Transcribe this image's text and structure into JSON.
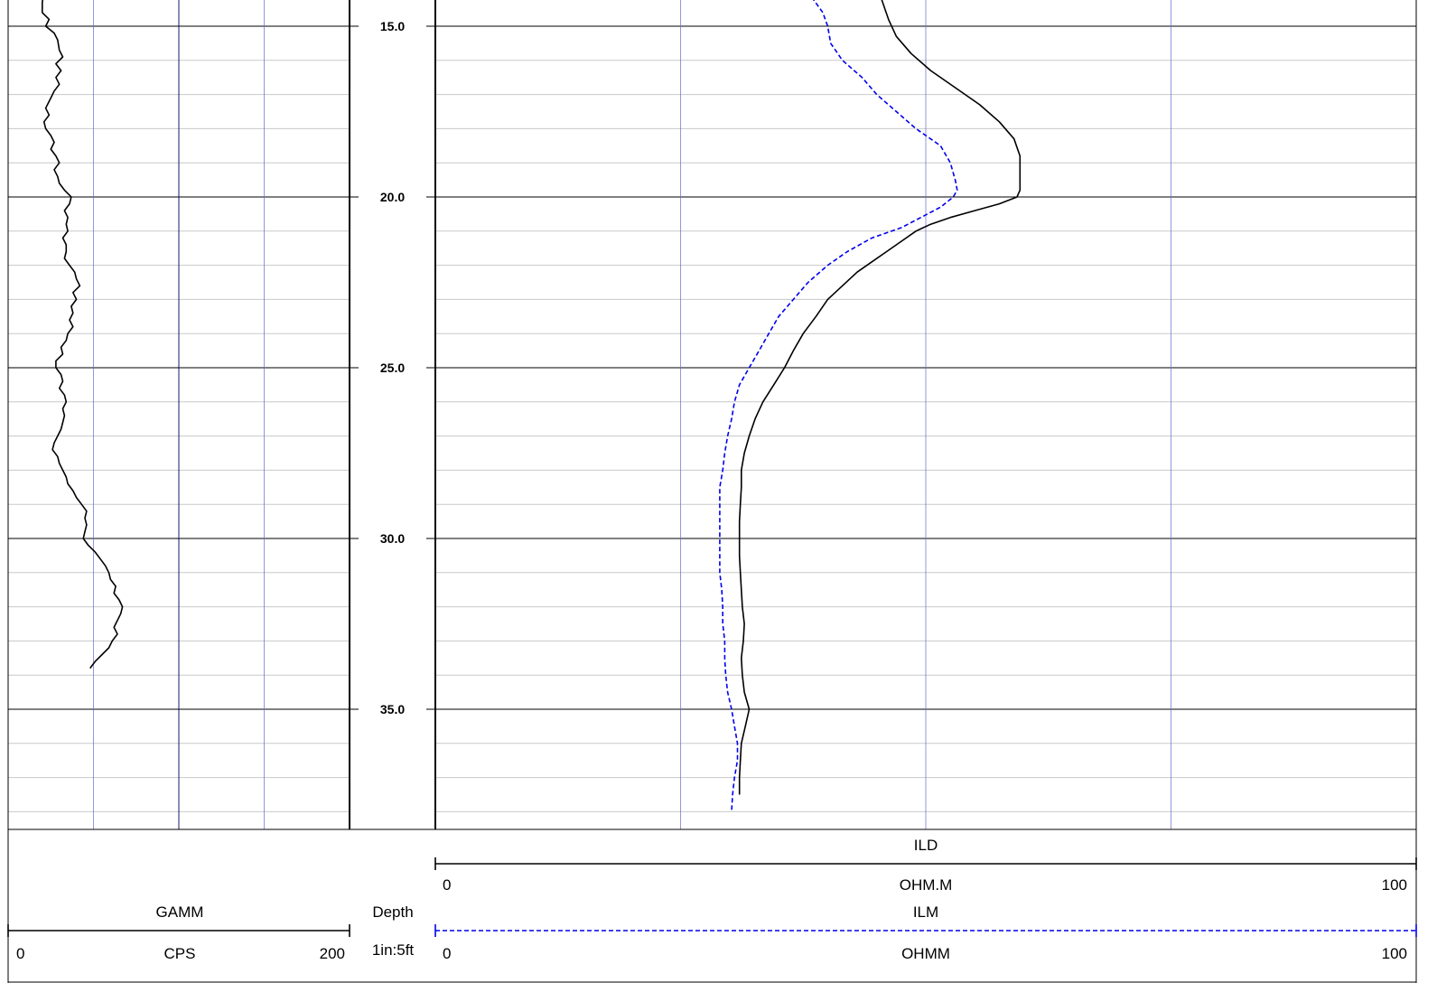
{
  "chart_data": {
    "type": "line",
    "depth_track": {
      "label": "Depth",
      "scale": "1in:5ft",
      "depth_range": [
        13.8,
        38.2
      ],
      "tick_labels": [
        "15.0",
        "20.0",
        "25.0",
        "30.0",
        "35.0"
      ]
    },
    "tracks": [
      {
        "name": "gamma-track",
        "grid": "linear",
        "series": [
          {
            "name": "GAMM",
            "unit": "CPS",
            "scale_min": "0",
            "scale_max": "200",
            "range": [
              0,
              200
            ],
            "color": "#000000",
            "style": "solid",
            "points": [
              [
                13.8,
                23
              ],
              [
                14.0,
                21
              ],
              [
                14.3,
                20
              ],
              [
                14.6,
                20
              ],
              [
                14.8,
                24
              ],
              [
                15.0,
                22
              ],
              [
                15.2,
                27
              ],
              [
                15.4,
                29
              ],
              [
                15.7,
                30
              ],
              [
                15.9,
                32
              ],
              [
                16.1,
                28
              ],
              [
                16.3,
                31
              ],
              [
                16.5,
                28
              ],
              [
                16.7,
                30
              ],
              [
                16.9,
                27
              ],
              [
                17.1,
                25
              ],
              [
                17.4,
                22
              ],
              [
                17.6,
                24
              ],
              [
                17.8,
                21
              ],
              [
                18.0,
                22
              ],
              [
                18.2,
                25
              ],
              [
                18.4,
                27
              ],
              [
                18.6,
                25
              ],
              [
                18.8,
                28
              ],
              [
                19.0,
                30
              ],
              [
                19.2,
                27
              ],
              [
                19.4,
                29
              ],
              [
                19.6,
                30
              ],
              [
                19.8,
                33
              ],
              [
                20.0,
                37
              ],
              [
                20.2,
                36
              ],
              [
                20.4,
                33
              ],
              [
                20.6,
                35
              ],
              [
                20.8,
                34
              ],
              [
                21.0,
                35
              ],
              [
                21.2,
                32
              ],
              [
                21.4,
                34
              ],
              [
                21.6,
                34
              ],
              [
                21.8,
                33
              ],
              [
                22.0,
                36
              ],
              [
                22.2,
                39
              ],
              [
                22.4,
                40
              ],
              [
                22.6,
                42
              ],
              [
                22.8,
                38
              ],
              [
                23.0,
                40
              ],
              [
                23.2,
                37
              ],
              [
                23.4,
                38
              ],
              [
                23.6,
                36
              ],
              [
                23.8,
                38
              ],
              [
                24.0,
                35
              ],
              [
                24.2,
                34
              ],
              [
                24.4,
                31
              ],
              [
                24.6,
                32
              ],
              [
                24.8,
                28
              ],
              [
                25.0,
                28
              ],
              [
                25.2,
                31
              ],
              [
                25.4,
                32
              ],
              [
                25.6,
                30
              ],
              [
                25.8,
                33
              ],
              [
                26.0,
                34
              ],
              [
                26.2,
                32
              ],
              [
                26.4,
                33
              ],
              [
                26.6,
                32
              ],
              [
                26.8,
                31
              ],
              [
                27.0,
                29
              ],
              [
                27.2,
                27
              ],
              [
                27.4,
                26
              ],
              [
                27.6,
                29
              ],
              [
                27.8,
                30
              ],
              [
                28.0,
                32
              ],
              [
                28.2,
                34
              ],
              [
                28.4,
                35
              ],
              [
                28.6,
                38
              ],
              [
                28.8,
                40
              ],
              [
                29.0,
                43
              ],
              [
                29.2,
                46
              ],
              [
                29.4,
                45
              ],
              [
                29.6,
                46
              ],
              [
                29.8,
                45
              ],
              [
                30.0,
                44
              ],
              [
                30.2,
                47
              ],
              [
                30.4,
                51
              ],
              [
                30.6,
                54
              ],
              [
                30.8,
                57
              ],
              [
                31.0,
                59
              ],
              [
                31.2,
                60
              ],
              [
                31.4,
                63
              ],
              [
                31.6,
                62
              ],
              [
                31.8,
                65
              ],
              [
                32.0,
                67
              ],
              [
                32.2,
                66
              ],
              [
                32.4,
                64
              ],
              [
                32.6,
                62
              ],
              [
                32.8,
                64
              ],
              [
                33.0,
                61
              ],
              [
                33.2,
                59
              ],
              [
                33.4,
                55
              ],
              [
                33.6,
                51
              ],
              [
                33.8,
                48
              ]
            ]
          }
        ]
      },
      {
        "name": "resistivity-track",
        "grid": "linear",
        "series": [
          {
            "name": "ILD",
            "unit": "OHM.M",
            "scale_min": "0",
            "scale_max": "100",
            "range": [
              0,
              100
            ],
            "color": "#000000",
            "style": "solid",
            "points": [
              [
                13.8,
                45.0
              ],
              [
                14.3,
                45.6
              ],
              [
                14.8,
                46.2
              ],
              [
                15.3,
                47.0
              ],
              [
                15.8,
                48.5
              ],
              [
                16.3,
                50.5
              ],
              [
                16.8,
                53.0
              ],
              [
                17.3,
                55.5
              ],
              [
                17.8,
                57.5
              ],
              [
                18.3,
                59.0
              ],
              [
                18.8,
                59.6
              ],
              [
                19.3,
                59.6
              ],
              [
                19.8,
                59.6
              ],
              [
                20.0,
                59.3
              ],
              [
                20.2,
                57.5
              ],
              [
                20.4,
                55.0
              ],
              [
                20.6,
                52.5
              ],
              [
                20.8,
                50.5
              ],
              [
                21.0,
                49.0
              ],
              [
                21.3,
                47.5
              ],
              [
                21.6,
                46.0
              ],
              [
                21.9,
                44.5
              ],
              [
                22.2,
                43.0
              ],
              [
                22.6,
                41.5
              ],
              [
                23.0,
                40.0
              ],
              [
                23.5,
                38.8
              ],
              [
                24.0,
                37.5
              ],
              [
                24.5,
                36.5
              ],
              [
                25.0,
                35.6
              ],
              [
                25.5,
                34.5
              ],
              [
                26.0,
                33.4
              ],
              [
                26.5,
                32.6
              ],
              [
                27.0,
                32.0
              ],
              [
                27.5,
                31.5
              ],
              [
                28.0,
                31.2
              ],
              [
                28.5,
                31.2
              ],
              [
                29.0,
                31.1
              ],
              [
                29.5,
                31.0
              ],
              [
                30.0,
                31.0
              ],
              [
                30.5,
                31.0
              ],
              [
                31.0,
                31.1
              ],
              [
                31.5,
                31.2
              ],
              [
                32.0,
                31.3
              ],
              [
                32.5,
                31.5
              ],
              [
                33.0,
                31.4
              ],
              [
                33.5,
                31.2
              ],
              [
                34.0,
                31.3
              ],
              [
                34.5,
                31.5
              ],
              [
                35.0,
                32.0
              ],
              [
                35.5,
                31.6
              ],
              [
                36.0,
                31.2
              ],
              [
                36.5,
                31.1
              ],
              [
                37.0,
                31.0
              ],
              [
                37.5,
                31.0
              ]
            ]
          },
          {
            "name": "ILM",
            "unit": "OHMM",
            "scale_min": "0",
            "scale_max": "100",
            "range": [
              0,
              100
            ],
            "color": "#0000ee",
            "style": "dashed",
            "points": [
              [
                13.8,
                36.5
              ],
              [
                14.2,
                38.5
              ],
              [
                14.6,
                39.5
              ],
              [
                15.0,
                40.0
              ],
              [
                15.5,
                40.3
              ],
              [
                16.0,
                41.5
              ],
              [
                16.5,
                43.5
              ],
              [
                17.0,
                45.0
              ],
              [
                17.5,
                47.0
              ],
              [
                18.0,
                49.0
              ],
              [
                18.5,
                51.5
              ],
              [
                19.0,
                52.5
              ],
              [
                19.5,
                53.0
              ],
              [
                19.8,
                53.2
              ],
              [
                20.0,
                52.8
              ],
              [
                20.3,
                51.5
              ],
              [
                20.6,
                49.5
              ],
              [
                20.9,
                47.5
              ],
              [
                21.2,
                44.5
              ],
              [
                21.6,
                42.0
              ],
              [
                22.0,
                40.0
              ],
              [
                22.5,
                38.0
              ],
              [
                23.0,
                36.5
              ],
              [
                23.5,
                35.0
              ],
              [
                24.0,
                34.0
              ],
              [
                24.5,
                33.0
              ],
              [
                25.0,
                32.0
              ],
              [
                25.5,
                31.0
              ],
              [
                26.0,
                30.5
              ],
              [
                26.5,
                30.2
              ],
              [
                27.0,
                29.8
              ],
              [
                27.5,
                29.5
              ],
              [
                28.0,
                29.3
              ],
              [
                28.5,
                29.0
              ],
              [
                29.0,
                29.0
              ],
              [
                29.5,
                29.0
              ],
              [
                30.0,
                29.0
              ],
              [
                30.5,
                29.0
              ],
              [
                31.0,
                29.0
              ],
              [
                31.5,
                29.2
              ],
              [
                32.0,
                29.3
              ],
              [
                32.5,
                29.3
              ],
              [
                33.0,
                29.5
              ],
              [
                33.5,
                29.5
              ],
              [
                34.0,
                29.6
              ],
              [
                34.5,
                29.8
              ],
              [
                35.0,
                30.2
              ],
              [
                35.5,
                30.5
              ],
              [
                36.0,
                30.8
              ],
              [
                36.5,
                30.8
              ],
              [
                37.0,
                30.5
              ],
              [
                37.5,
                30.3
              ],
              [
                38.0,
                30.2
              ]
            ]
          }
        ]
      }
    ]
  },
  "header": {
    "gamma": {
      "curve": "GAMM",
      "unit": "CPS",
      "min": "0",
      "max": "200"
    },
    "depth": {
      "label": "Depth",
      "scale": "1in:5ft"
    },
    "ild": {
      "curve": "ILD",
      "unit": "OHM.M",
      "min": "0",
      "max": "100"
    },
    "ilm": {
      "curve": "ILM",
      "unit": "OHMM",
      "min": "0",
      "max": "100"
    }
  }
}
